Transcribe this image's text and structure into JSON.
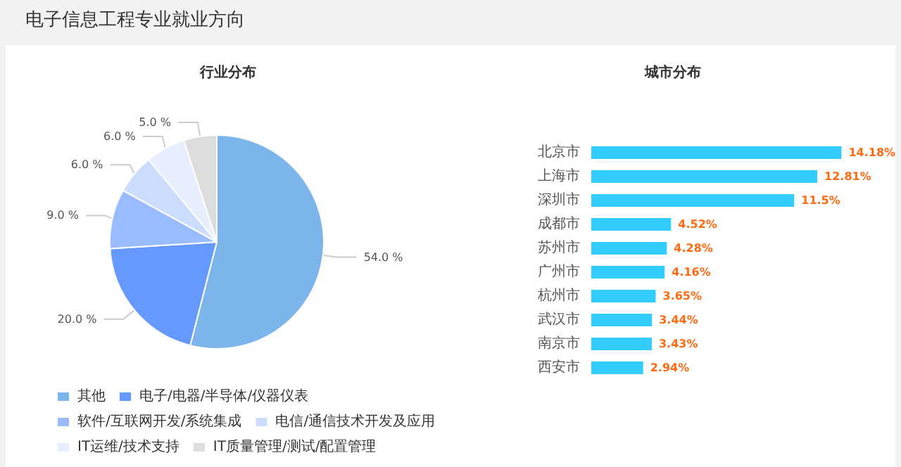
{
  "chart_data": [
    {
      "type": "pie",
      "title": "行业分布",
      "annotations": [
        "电子信息工程专业就业方向"
      ],
      "categories": [
        "其他",
        "电子/电器/半导体/仪器仪表",
        "软件/互联网开发/系统集成",
        "电信/通信技术开发及应用",
        "IT运维/技术支持",
        "IT质量管理/测试/配置管理"
      ],
      "values": [
        54,
        20,
        9,
        6,
        6,
        5
      ],
      "colors": [
        "#7cb5ec",
        "#6699ff",
        "#99bbff",
        "#ccdcff",
        "#e6eeff",
        "#dddddd"
      ],
      "value_labels": [
        "54.0 %",
        "20.0 %",
        "9.0 %",
        "6.0 %",
        "6.0 %",
        "5.0 %"
      ],
      "legend": "bottom"
    },
    {
      "type": "bar",
      "orientation": "horizontal",
      "title": "城市分布",
      "categories": [
        "北京市",
        "上海市",
        "深圳市",
        "成都市",
        "苏州市",
        "广州市",
        "杭州市",
        "武汉市",
        "南京市",
        "西安市"
      ],
      "values": [
        14.18,
        12.81,
        11.5,
        4.52,
        4.28,
        4.16,
        3.65,
        3.44,
        3.43,
        2.94
      ],
      "color": "#33ccff",
      "value_labels": [
        "14.18%",
        "12.81%",
        "11.5%",
        "4.52%",
        "4.28%",
        "4.16%",
        "3.65%",
        "3.44%",
        "3.43%",
        "2.94%"
      ]
    }
  ]
}
